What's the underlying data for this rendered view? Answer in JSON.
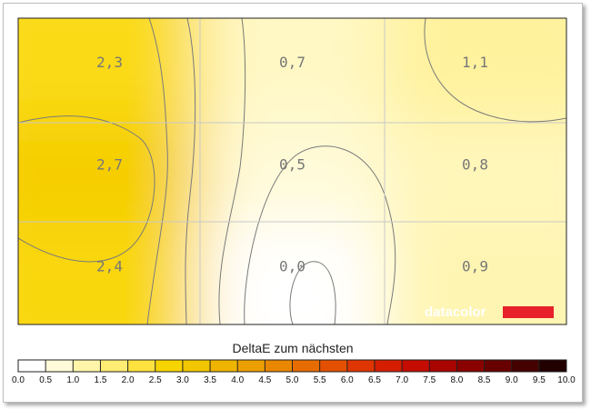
{
  "chart_data": {
    "type": "heatmap",
    "title": "",
    "colorbar_title": "DeltaE zum nächsten",
    "rows": 3,
    "cols": 3,
    "values": [
      [
        2.3,
        0.7,
        1.1
      ],
      [
        2.7,
        0.5,
        0.8
      ],
      [
        2.4,
        0.0,
        0.9
      ]
    ],
    "value_labels": [
      [
        "2,3",
        "0,7",
        "1,1"
      ],
      [
        "2,7",
        "0,5",
        "0,8"
      ],
      [
        "2,4",
        "0,0",
        "0,9"
      ]
    ],
    "color_scale": {
      "min": 0.0,
      "max": 10.0,
      "step": 0.5,
      "tick_labels": [
        "0.0",
        "0.5",
        "1.0",
        "1.5",
        "2.0",
        "2.5",
        "3.0",
        "3.5",
        "4.0",
        "4.5",
        "5.0",
        "5.5",
        "6.0",
        "6.5",
        "7.0",
        "7.5",
        "8.0",
        "8.5",
        "9.0",
        "9.5",
        "10.0"
      ],
      "colors": [
        "#ffffff",
        "#fffad8",
        "#fff4a8",
        "#ffec72",
        "#ffe23e",
        "#f7d400",
        "#f2c600",
        "#efb400",
        "#ec9f00",
        "#e98700",
        "#e66c00",
        "#e35100",
        "#df3500",
        "#d51d00",
        "#c40c00",
        "#a90400",
        "#8a0200",
        "#680000",
        "#450000",
        "#220000"
      ]
    },
    "grid": true,
    "watermark": "datacolor",
    "accent_color": "#e8202a"
  }
}
